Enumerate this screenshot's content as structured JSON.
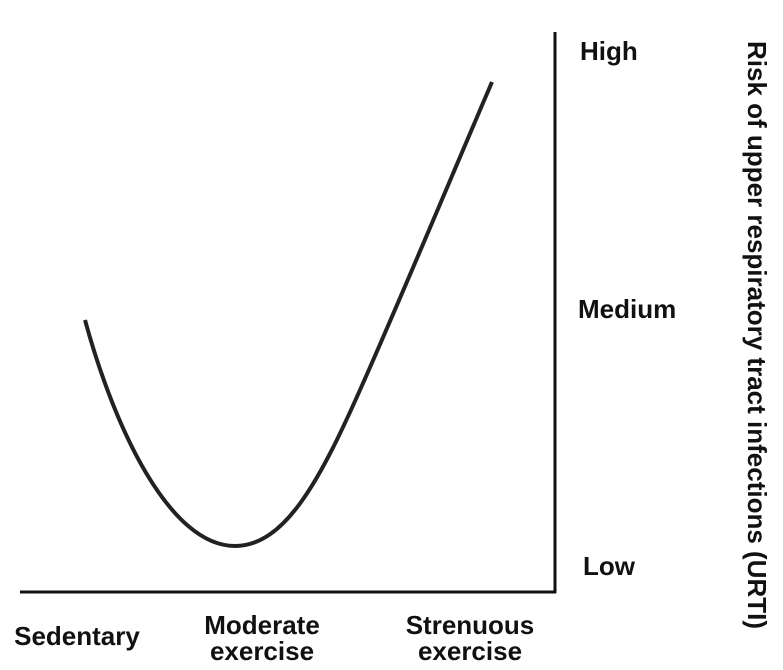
{
  "y_axis": {
    "title": "Risk of upper respiratory tract infections (URTI)",
    "levels": [
      "High",
      "Medium",
      "Low"
    ]
  },
  "x_axis": {
    "levels": [
      [
        "Sedentary"
      ],
      [
        "Moderate",
        "exercise"
      ],
      [
        "Strenuous",
        "exercise"
      ]
    ]
  }
}
